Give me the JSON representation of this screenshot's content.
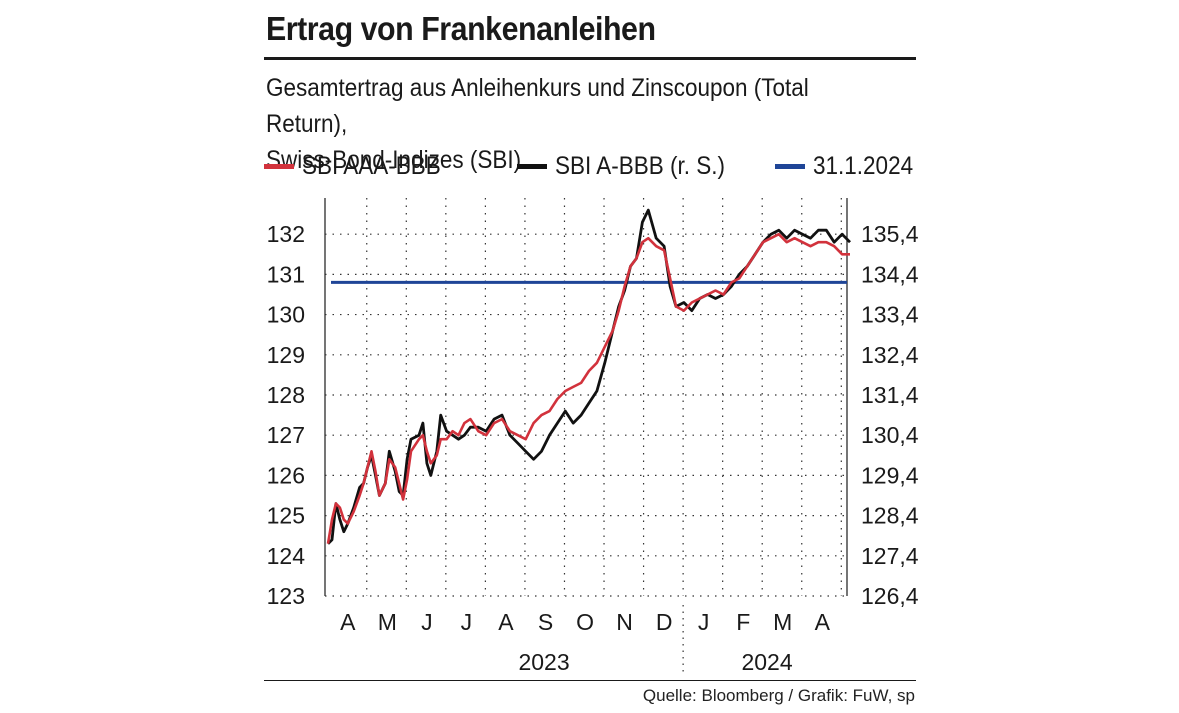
{
  "title": "Ertrag von Frankenanleihen",
  "subtitle_line1": "Gesamtertrag aus Anleihenkurs und Zinscoupon (Total Return),",
  "subtitle_line2": "Swiss-Bond-Indizes (SBI)",
  "legend": [
    {
      "label": "SBI AAA-BBB",
      "color": "#d2323c"
    },
    {
      "label": "SBI A-BBB (r. S.)",
      "color": "#111111"
    },
    {
      "label": "31.1.2024",
      "color": "#1f4597"
    }
  ],
  "footer": "Quelle: Bloomberg / Grafik: FuW, sp",
  "chart_data": {
    "type": "line",
    "title": "Ertrag von Frankenanleihen",
    "x_months": [
      "A",
      "M",
      "J",
      "J",
      "A",
      "S",
      "O",
      "N",
      "D",
      "J",
      "F",
      "M",
      "A"
    ],
    "years": [
      "2023",
      "2024"
    ],
    "y_left": {
      "ticks": [
        "132",
        "131",
        "130",
        "129",
        "128",
        "127",
        "126",
        "125",
        "124",
        "123"
      ],
      "range": [
        123,
        132.9
      ]
    },
    "y_right": {
      "ticks": [
        "135,4",
        "134,4",
        "133,4",
        "132,4",
        "131,4",
        "130,4",
        "129,4",
        "128,4",
        "127,4",
        "126,4"
      ],
      "range": [
        126.4,
        136.3
      ]
    },
    "reference_line": {
      "label": "31.1.2024",
      "value_left_axis": 130.8,
      "color": "#1f4597"
    },
    "series": [
      {
        "name": "SBI AAA-BBB",
        "axis": "left",
        "color": "#d2323c",
        "x": [
          0,
          0.1,
          0.2,
          0.3,
          0.4,
          0.5,
          0.65,
          0.8,
          0.9,
          1.0,
          1.1,
          1.2,
          1.3,
          1.45,
          1.55,
          1.7,
          1.8,
          1.9,
          2.0,
          2.1,
          2.3,
          2.4,
          2.5,
          2.6,
          2.75,
          2.85,
          3.0,
          3.15,
          3.3,
          3.45,
          3.6,
          3.8,
          4.0,
          4.2,
          4.4,
          4.6,
          4.8,
          5.0,
          5.2,
          5.4,
          5.6,
          5.8,
          6.0,
          6.2,
          6.4,
          6.6,
          6.8,
          7.0,
          7.2,
          7.35,
          7.5,
          7.65,
          7.8,
          7.95,
          8.1,
          8.3,
          8.5,
          8.65,
          8.8,
          9.0,
          9.2,
          9.4,
          9.6,
          9.8,
          10.0,
          10.2,
          10.4,
          10.6,
          10.8,
          11.0,
          11.2,
          11.4,
          11.6,
          11.8,
          12.0,
          12.2,
          12.4,
          12.6,
          12.8,
          13.0,
          13.2
        ],
        "values": [
          124.3,
          124.9,
          125.3,
          125.2,
          124.9,
          124.8,
          125.1,
          125.5,
          125.8,
          126.2,
          126.6,
          126.1,
          125.5,
          125.8,
          126.4,
          126.2,
          125.8,
          125.4,
          125.9,
          126.6,
          126.9,
          127.0,
          126.6,
          126.3,
          126.5,
          126.9,
          126.9,
          127.1,
          127.0,
          127.3,
          127.4,
          127.1,
          127.0,
          127.3,
          127.4,
          127.1,
          127.0,
          126.9,
          127.3,
          127.5,
          127.6,
          127.9,
          128.1,
          128.2,
          128.3,
          128.6,
          128.8,
          129.2,
          129.6,
          130.1,
          130.7,
          131.2,
          131.4,
          131.8,
          131.9,
          131.7,
          131.6,
          130.9,
          130.2,
          130.1,
          130.3,
          130.4,
          130.5,
          130.6,
          130.5,
          130.8,
          130.9,
          131.2,
          131.5,
          131.8,
          131.9,
          132.0,
          131.8,
          131.9,
          131.8,
          131.7,
          131.8,
          131.8,
          131.7,
          131.5,
          131.5
        ]
      },
      {
        "name": "SBI A-BBB (r. S.)",
        "axis": "right",
        "color": "#111111",
        "x": [
          0,
          0.1,
          0.2,
          0.3,
          0.4,
          0.5,
          0.65,
          0.8,
          0.9,
          1.0,
          1.1,
          1.2,
          1.3,
          1.45,
          1.55,
          1.7,
          1.8,
          1.9,
          2.0,
          2.1,
          2.3,
          2.4,
          2.5,
          2.6,
          2.75,
          2.85,
          3.0,
          3.15,
          3.3,
          3.45,
          3.6,
          3.8,
          4.0,
          4.2,
          4.4,
          4.6,
          4.8,
          5.0,
          5.2,
          5.4,
          5.6,
          5.8,
          6.0,
          6.2,
          6.4,
          6.6,
          6.8,
          7.0,
          7.2,
          7.35,
          7.5,
          7.65,
          7.8,
          7.95,
          8.1,
          8.3,
          8.5,
          8.65,
          8.8,
          9.0,
          9.2,
          9.4,
          9.6,
          9.8,
          10.0,
          10.2,
          10.4,
          10.6,
          10.8,
          11.0,
          11.2,
          11.4,
          11.6,
          11.8,
          12.0,
          12.2,
          12.4,
          12.6,
          12.8,
          13.0,
          13.2
        ],
        "values": [
          127.7,
          127.8,
          128.7,
          128.3,
          128.0,
          128.2,
          128.6,
          129.1,
          129.2,
          129.6,
          129.9,
          129.4,
          128.9,
          129.2,
          130.0,
          129.5,
          129.0,
          128.9,
          129.8,
          130.3,
          130.4,
          130.7,
          129.7,
          129.4,
          130.0,
          130.9,
          130.5,
          130.4,
          130.3,
          130.4,
          130.6,
          130.6,
          130.5,
          130.8,
          130.9,
          130.4,
          130.2,
          130.0,
          129.8,
          130.0,
          130.4,
          130.7,
          131.0,
          130.7,
          130.9,
          131.2,
          131.5,
          132.2,
          133.0,
          133.6,
          134.0,
          134.6,
          134.8,
          135.7,
          136.0,
          135.3,
          135.1,
          134.1,
          133.6,
          133.7,
          133.5,
          133.8,
          133.9,
          133.8,
          133.9,
          134.1,
          134.4,
          134.6,
          134.9,
          135.2,
          135.4,
          135.5,
          135.3,
          135.5,
          135.4,
          135.3,
          135.5,
          135.5,
          135.2,
          135.4,
          135.2
        ]
      }
    ]
  }
}
